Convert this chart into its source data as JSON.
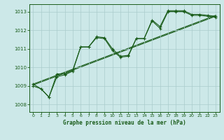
{
  "title": "Graphe pression niveau de la mer (hPa)",
  "bg_color": "#cce8e8",
  "grid_color": "#aacccc",
  "line_color": "#1a5c1a",
  "xlim": [
    -0.5,
    23.5
  ],
  "ylim": [
    1007.6,
    1013.4
  ],
  "xticks": [
    0,
    1,
    2,
    3,
    4,
    5,
    6,
    7,
    8,
    9,
    10,
    11,
    12,
    13,
    14,
    15,
    16,
    17,
    18,
    19,
    20,
    21,
    22,
    23
  ],
  "yticks": [
    1008,
    1009,
    1010,
    1011,
    1012,
    1013
  ],
  "series1_x": [
    0,
    1,
    2,
    3,
    4,
    5,
    6,
    7,
    8,
    9,
    10,
    11,
    12,
    13,
    14,
    15,
    16,
    17,
    18,
    19,
    20,
    21,
    22,
    23
  ],
  "series1_y": [
    1009.1,
    1008.85,
    1008.4,
    1009.65,
    1009.65,
    1009.85,
    1011.1,
    1011.1,
    1011.65,
    1011.6,
    1011.0,
    1010.6,
    1010.65,
    1011.55,
    1011.55,
    1012.55,
    1012.2,
    1013.05,
    1013.05,
    1013.05,
    1012.85,
    1012.85,
    1012.8,
    1012.75
  ],
  "series2_x": [
    0,
    1,
    2,
    3,
    4,
    5,
    6,
    7,
    8,
    9,
    10,
    11,
    12,
    13,
    14,
    15,
    16,
    17,
    18,
    19,
    20,
    21,
    22,
    23
  ],
  "series2_y": [
    1009.0,
    1008.85,
    1008.4,
    1009.5,
    1009.6,
    1009.8,
    1011.1,
    1011.1,
    1011.6,
    1011.55,
    1010.9,
    1010.55,
    1010.6,
    1011.55,
    1011.55,
    1012.5,
    1012.1,
    1013.0,
    1013.0,
    1013.0,
    1012.8,
    1012.8,
    1012.75,
    1012.7
  ],
  "series3_x": [
    0,
    23
  ],
  "series3_y": [
    1009.05,
    1012.75
  ],
  "series4_x": [
    0,
    23
  ],
  "series4_y": [
    1009.1,
    1012.8
  ]
}
